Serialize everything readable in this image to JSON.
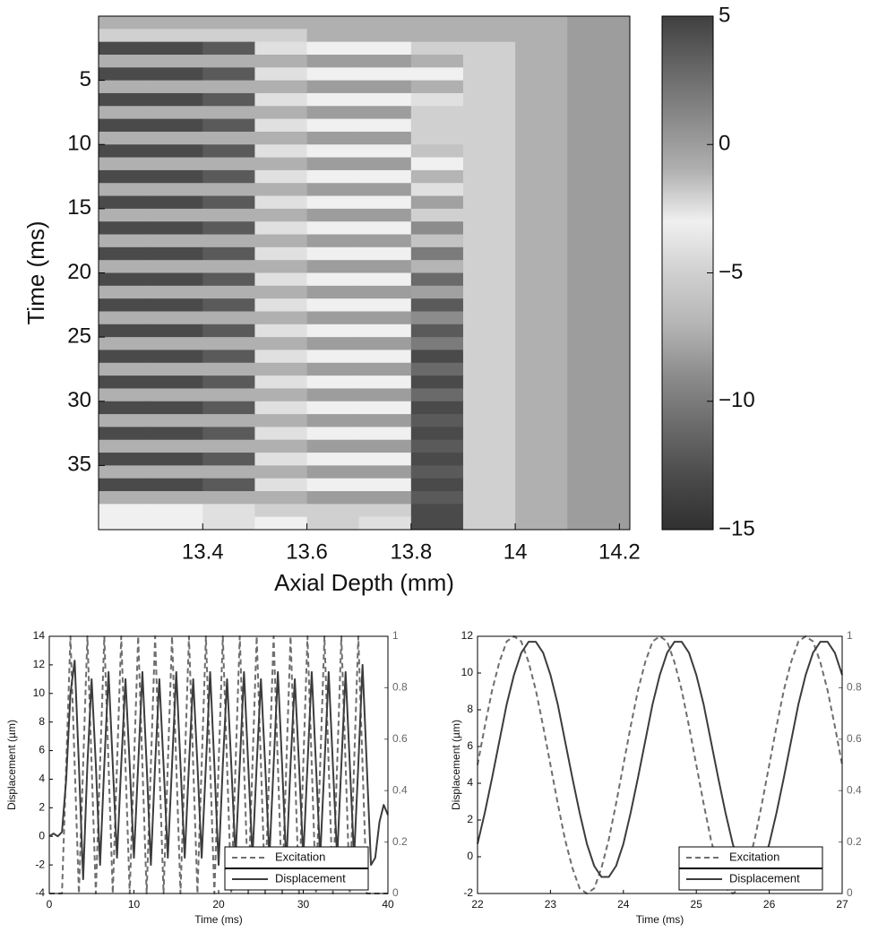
{
  "chart_data": [
    {
      "type": "heatmap",
      "xlabel": "Axial Depth (mm)",
      "ylabel": "Time (ms)",
      "x": [
        13.25,
        13.35,
        13.45,
        13.55,
        13.65,
        13.75,
        13.85,
        13.95,
        14.05,
        14.15
      ],
      "y": [
        0.5,
        1.5,
        2.5,
        3.5,
        4.5,
        5.5,
        6.5,
        7.5,
        8.5,
        9.5,
        10.5,
        11.5,
        12.5,
        13.5,
        14.5,
        15.5,
        16.5,
        17.5,
        18.5,
        19.5,
        20.5,
        21.5,
        22.5,
        23.5,
        24.5,
        25.5,
        26.5,
        27.5,
        28.5,
        29.5,
        30.5,
        31.5,
        32.5,
        33.5,
        34.5,
        35.5,
        36.5,
        37.5,
        38.5,
        39.5
      ],
      "z": [
        [
          -1,
          -1,
          -1,
          -1,
          -1,
          -1,
          -1,
          -1,
          -1,
          0
        ],
        [
          -2,
          -2,
          -2,
          -2,
          -1,
          -1,
          -1,
          -1,
          -1,
          0
        ],
        [
          -13,
          -13,
          -12,
          -4,
          -3,
          -3,
          -2,
          -5,
          -1,
          0
        ],
        [
          -1,
          -1,
          -1,
          -1,
          0,
          0,
          -1,
          -2,
          -1,
          0
        ],
        [
          -13,
          -13,
          -12,
          -4,
          -3,
          -3,
          -3,
          -5,
          -1,
          0
        ],
        [
          -1,
          -1,
          -1,
          -1,
          0,
          0,
          -1,
          -2,
          -1,
          0
        ],
        [
          -13,
          -13,
          -12,
          -4,
          -3,
          -3,
          -4,
          -5,
          -1,
          0
        ],
        [
          -1,
          -1,
          -1,
          -1,
          0,
          0,
          -2,
          -2,
          -1,
          0
        ],
        [
          -13,
          -13,
          -12,
          -4,
          -3,
          -3,
          -5,
          -5,
          -1,
          0
        ],
        [
          -1,
          -1,
          -1,
          -1,
          0,
          0,
          -2,
          -2,
          -1,
          0
        ],
        [
          -13,
          -13,
          -12,
          -4,
          -3,
          -3,
          -6,
          -5,
          -1,
          0
        ],
        [
          -1,
          -1,
          -1,
          -1,
          0,
          0,
          -3,
          -2,
          -1,
          0
        ],
        [
          -13,
          -13,
          -12,
          -4,
          -3,
          -3,
          -7,
          -5,
          -1,
          0
        ],
        [
          -1,
          -1,
          -1,
          -1,
          0,
          0,
          -4,
          -2,
          -1,
          0
        ],
        [
          -13,
          -13,
          -12,
          -4,
          -3,
          -3,
          -8,
          -5,
          -1,
          0
        ],
        [
          -1,
          -1,
          -1,
          -1,
          0,
          0,
          -5,
          -2,
          -1,
          0
        ],
        [
          -13,
          -13,
          -12,
          -4,
          -3,
          -3,
          -9,
          -5,
          -1,
          0
        ],
        [
          -1,
          -1,
          -1,
          -1,
          0,
          0,
          -6,
          -2,
          -1,
          0
        ],
        [
          -13,
          -13,
          -12,
          -4,
          -3,
          -3,
          -10,
          -5,
          -1,
          0
        ],
        [
          -1,
          -1,
          -1,
          -1,
          0,
          0,
          -7,
          -2,
          -1,
          0
        ],
        [
          -13,
          -13,
          -12,
          -4,
          -3,
          -3,
          -11,
          -5,
          -1,
          0
        ],
        [
          -1,
          -1,
          -1,
          -1,
          0,
          0,
          -8,
          -2,
          -1,
          0
        ],
        [
          -13,
          -13,
          -12,
          -4,
          -3,
          -3,
          -12,
          -5,
          -1,
          0
        ],
        [
          -1,
          -1,
          -1,
          -1,
          0,
          0,
          -9,
          -2,
          -1,
          0
        ],
        [
          -13,
          -13,
          -12,
          -4,
          -3,
          -3,
          -12,
          -5,
          -1,
          0
        ],
        [
          -1,
          -1,
          -1,
          -1,
          0,
          0,
          -10,
          -2,
          -1,
          0
        ],
        [
          -13,
          -13,
          -12,
          -4,
          -3,
          -3,
          -13,
          -5,
          -1,
          0
        ],
        [
          -1,
          -1,
          -1,
          -1,
          0,
          0,
          -11,
          -2,
          -1,
          0
        ],
        [
          -13,
          -13,
          -12,
          -4,
          -3,
          -3,
          -13,
          -5,
          -1,
          0
        ],
        [
          -1,
          -1,
          -1,
          -1,
          0,
          0,
          -11,
          -2,
          -1,
          0
        ],
        [
          -13,
          -13,
          -12,
          -4,
          -3,
          -3,
          -13,
          -5,
          -1,
          0
        ],
        [
          -1,
          -1,
          -1,
          -1,
          0,
          0,
          -12,
          -2,
          -1,
          0
        ],
        [
          -13,
          -13,
          -12,
          -4,
          -3,
          -3,
          -13,
          -5,
          -1,
          0
        ],
        [
          -1,
          -1,
          -1,
          -1,
          0,
          0,
          -12,
          -2,
          -1,
          0
        ],
        [
          -13,
          -13,
          -12,
          -4,
          -3,
          -3,
          -13,
          -5,
          -1,
          0
        ],
        [
          -1,
          -1,
          -1,
          -1,
          0,
          0,
          -12,
          -2,
          -1,
          0
        ],
        [
          -13,
          -13,
          -12,
          -4,
          -3,
          -3,
          -13,
          -5,
          -1,
          0
        ],
        [
          -1,
          -1,
          -1,
          -1,
          0,
          0,
          -12,
          -2,
          -1,
          0
        ],
        [
          -3,
          -3,
          -4,
          -2,
          -2,
          -5,
          -13,
          -2,
          -1,
          0
        ],
        [
          -3,
          -3,
          -4,
          -3,
          -2,
          -4,
          -13,
          -2,
          -1,
          0
        ]
      ],
      "xlim": [
        13.2,
        14.22
      ],
      "xticks": [
        13.4,
        13.6,
        13.8,
        14,
        14.2
      ],
      "ylim": [
        0,
        40
      ],
      "yreverse": true,
      "yticks": [
        5,
        10,
        15,
        20,
        25,
        30,
        35
      ],
      "clim": [
        -15,
        5
      ],
      "cticks": [
        {
          "value": -15,
          "label": "−15"
        },
        {
          "value": -10,
          "label": "−10"
        },
        {
          "value": -5,
          "label": "−5"
        },
        0,
        5
      ],
      "colormap": [
        "#303030",
        "#4a4a4a",
        "#6a6a6a",
        "#8c8c8c",
        "#b5b5b5",
        "#d0d0d0",
        "#f0f0f0",
        "#b0b0b0",
        "#8a8a8a",
        "#666666",
        "#404040"
      ]
    },
    {
      "type": "line",
      "xlabel": "Time (ms)",
      "ylabel": "Displacement (µm)",
      "x": [
        0,
        0.5,
        1,
        1.5,
        2,
        2.5,
        3,
        3.5,
        4,
        4.5,
        5,
        5.5,
        6,
        6.5,
        7,
        7.5,
        8,
        8.5,
        9,
        9.5,
        10,
        10.5,
        11,
        11.5,
        12,
        12.5,
        13,
        13.5,
        14,
        14.5,
        15,
        15.5,
        16,
        16.5,
        17,
        17.5,
        18,
        18.5,
        19,
        19.5,
        20,
        20.5,
        21,
        21.5,
        22,
        22.5,
        23,
        23.5,
        24,
        24.5,
        25,
        25.5,
        26,
        26.5,
        27,
        27.5,
        28,
        28.5,
        29,
        29.5,
        30,
        30.5,
        31,
        31.5,
        32,
        32.5,
        33,
        33.5,
        34,
        34.5,
        35,
        35.5,
        36,
        36.5,
        37,
        37.5,
        38,
        38.5,
        39,
        39.5,
        40
      ],
      "series": [
        {
          "name": "Excitation",
          "color": "#6e6e6e",
          "linestyle": "dashed",
          "axis": "y2",
          "values": [
            0,
            0,
            0,
            0,
            0.5,
            1,
            0.5,
            0,
            0.5,
            1,
            0.5,
            0,
            0.5,
            1,
            0.5,
            0,
            0.5,
            1,
            0.5,
            0,
            0.5,
            1,
            0.5,
            0,
            0.5,
            1,
            0.5,
            0,
            0.5,
            1,
            0.5,
            0,
            0.5,
            1,
            0.5,
            0,
            0.5,
            1,
            0.5,
            0,
            0.5,
            1,
            0.5,
            0,
            0.5,
            1,
            0.5,
            0,
            0.5,
            1,
            0.5,
            0,
            0.5,
            1,
            0.5,
            0,
            0.5,
            1,
            0.5,
            0,
            0.5,
            1,
            0.5,
            0,
            0.5,
            1,
            0.5,
            0,
            0.5,
            1,
            0.5,
            0,
            0.5,
            1,
            0.5,
            0,
            0,
            0,
            0,
            0,
            0
          ]
        },
        {
          "name": "Displacement",
          "color": "#3c3c3c",
          "linestyle": "solid",
          "axis": "y",
          "values": [
            0,
            0.2,
            0,
            0.3,
            4,
            10,
            12.3,
            5,
            -3,
            5,
            11,
            5,
            -2,
            5,
            11.5,
            5,
            -1.5,
            5,
            11,
            5,
            -1.5,
            5,
            11.5,
            5,
            -2,
            5,
            11,
            5,
            -1.5,
            5,
            11.5,
            5,
            -1.5,
            5,
            11,
            5,
            -1.5,
            5,
            11.5,
            5,
            -2,
            5,
            11,
            5,
            -1.5,
            5,
            11.5,
            5,
            -1.5,
            5,
            11,
            5,
            -1.5,
            5,
            11.5,
            5,
            -2,
            5,
            11,
            5,
            -1.5,
            5,
            11.5,
            5,
            -1.5,
            5,
            11.5,
            5,
            -1.5,
            5,
            11.5,
            5,
            -1.5,
            5,
            12,
            5,
            -2,
            -1.5,
            1,
            2.2,
            1.5
          ]
        }
      ],
      "xlim": [
        0,
        40
      ],
      "xticks": [
        0,
        10,
        20,
        30,
        40
      ],
      "ylim": [
        -4,
        14
      ],
      "yticks": [
        -4,
        -2,
        0,
        2,
        4,
        6,
        8,
        10,
        12,
        14
      ],
      "y2lim": [
        0,
        1
      ],
      "y2ticks": [
        0,
        0.2,
        0.4,
        0.6,
        0.8,
        1
      ],
      "legend": "lower right"
    },
    {
      "type": "line",
      "xlabel": "Time (ms)",
      "ylabel": "Displacement (µm)",
      "x": [
        22,
        22.1,
        22.2,
        22.3,
        22.4,
        22.5,
        22.6,
        22.7,
        22.8,
        22.9,
        23,
        23.1,
        23.2,
        23.3,
        23.4,
        23.5,
        23.6,
        23.7,
        23.8,
        23.9,
        24,
        24.1,
        24.2,
        24.3,
        24.4,
        24.5,
        24.6,
        24.7,
        24.8,
        24.9,
        25,
        25.1,
        25.2,
        25.3,
        25.4,
        25.5,
        25.6,
        25.7,
        25.8,
        25.9,
        26,
        26.1,
        26.2,
        26.3,
        26.4,
        26.5,
        26.6,
        26.7,
        26.8,
        26.9,
        27
      ],
      "series": [
        {
          "name": "Excitation",
          "color": "#6e6e6e",
          "linestyle": "dashed",
          "axis": "y2",
          "values": [
            0.5,
            0.65,
            0.79,
            0.9,
            0.98,
            1,
            0.98,
            0.9,
            0.79,
            0.65,
            0.5,
            0.35,
            0.21,
            0.1,
            0.02,
            0,
            0.02,
            0.1,
            0.21,
            0.35,
            0.5,
            0.65,
            0.79,
            0.9,
            0.98,
            1,
            0.98,
            0.9,
            0.79,
            0.65,
            0.5,
            0.35,
            0.21,
            0.1,
            0.02,
            0,
            0.02,
            0.1,
            0.21,
            0.35,
            0.5,
            0.65,
            0.79,
            0.9,
            0.98,
            1,
            0.98,
            0.9,
            0.79,
            0.65,
            0.5
          ]
        },
        {
          "name": "Displacement",
          "color": "#3c3c3c",
          "linestyle": "solid",
          "axis": "y",
          "values": [
            0.7,
            2.4,
            4.3,
            6.3,
            8.3,
            9.9,
            11.1,
            11.7,
            11.7,
            11.1,
            9.9,
            8.3,
            6.3,
            4.3,
            2.4,
            0.7,
            -0.5,
            -1.1,
            -1.1,
            -0.5,
            0.7,
            2.4,
            4.3,
            6.3,
            8.3,
            9.9,
            11.1,
            11.7,
            11.7,
            11.1,
            9.9,
            8.3,
            6.3,
            4.3,
            2.4,
            0.7,
            -0.5,
            -1.1,
            -1.1,
            -0.5,
            0.7,
            2.4,
            4.3,
            6.3,
            8.3,
            9.9,
            11.1,
            11.7,
            11.7,
            11.1,
            9.9
          ]
        }
      ],
      "xlim": [
        22,
        27
      ],
      "xticks": [
        22,
        23,
        24,
        25,
        26,
        27
      ],
      "ylim": [
        -2,
        12
      ],
      "yticks": [
        -2,
        0,
        2,
        4,
        6,
        8,
        10,
        12
      ],
      "y2lim": [
        0,
        1
      ],
      "y2ticks": [
        0,
        0.2,
        0.4,
        0.6,
        0.8,
        1
      ],
      "legend": "lower right"
    }
  ]
}
